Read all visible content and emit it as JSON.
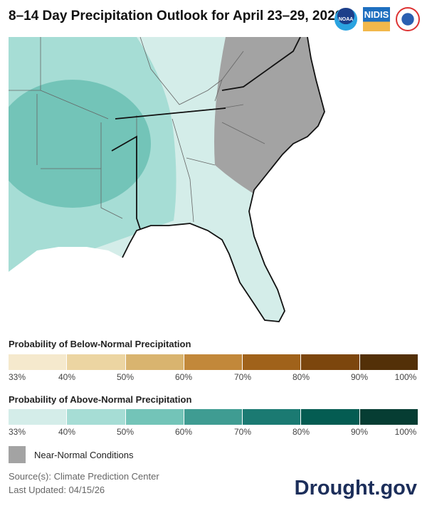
{
  "title": "8–14 Day Precipitation Outlook for April 23–29, 2026",
  "logos": {
    "noaa": "NOAA",
    "nidis": "NIDIS",
    "nws": "National Weather Service"
  },
  "legend_below": {
    "title": "Probability of Below-Normal Precipitation",
    "colors": [
      "#f5e9cd",
      "#ecd5a2",
      "#d9b46f",
      "#c2883a",
      "#a0621a",
      "#7c460d",
      "#533008"
    ],
    "ticks": [
      "33%",
      "40%",
      "50%",
      "60%",
      "70%",
      "80%",
      "90%",
      "100%"
    ]
  },
  "legend_above": {
    "title": "Probability of Above-Normal Precipitation",
    "colors": [
      "#d4ede9",
      "#a6ddd5",
      "#73c4b8",
      "#3f9c92",
      "#1b7a72",
      "#045c52",
      "#063d33"
    ],
    "ticks": [
      "33%",
      "40%",
      "50%",
      "60%",
      "70%",
      "80%",
      "90%",
      "100%"
    ]
  },
  "near_normal": {
    "label": "Near-Normal Conditions",
    "color": "#a3a3a3"
  },
  "source": "Source(s): Climate Prediction Center",
  "updated": "Last Updated: 04/15/26",
  "brand": "Drought.gov"
}
